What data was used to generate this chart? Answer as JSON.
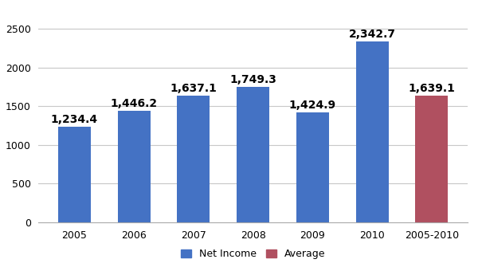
{
  "categories": [
    "2005",
    "2006",
    "2007",
    "2008",
    "2009",
    "2010",
    "2005-2010"
  ],
  "values": [
    1234.4,
    1446.2,
    1637.1,
    1749.3,
    1424.9,
    2342.7,
    1639.1
  ],
  "labels": [
    "1,234.4",
    "1,446.2",
    "1,637.1",
    "1,749.3",
    "1,424.9",
    "2,342.7",
    "1,639.1"
  ],
  "bar_colors": [
    "#4472C4",
    "#4472C4",
    "#4472C4",
    "#4472C4",
    "#4472C4",
    "#4472C4",
    "#B05060"
  ],
  "ylim": [
    0,
    2700
  ],
  "yticks": [
    0,
    500,
    1000,
    1500,
    2000,
    2500
  ],
  "legend_labels": [
    "Net Income",
    "Average"
  ],
  "legend_colors": [
    "#4472C4",
    "#B05060"
  ],
  "background_color": "#FFFFFF",
  "grid_color": "#C8C8C8",
  "label_fontsize": 10,
  "tick_fontsize": 9
}
